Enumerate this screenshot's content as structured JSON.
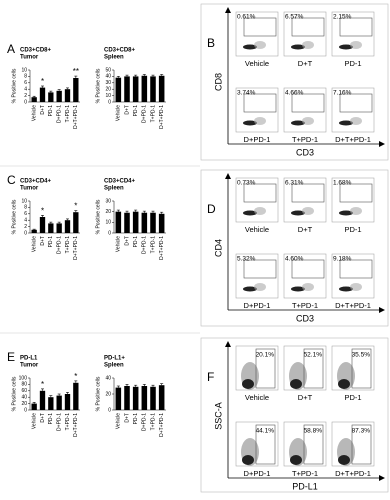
{
  "chart_data": [
    {
      "type": "bar",
      "title": "CD3+CD8+",
      "subtitle": "Tumor",
      "y_label": "% Positive cells",
      "categories": [
        "Vehicle",
        "D+T",
        "PD-1",
        "D+PD-1",
        "T+PD-1",
        "D+T+PD-1"
      ],
      "values": [
        1.5,
        4.5,
        3,
        3.5,
        4,
        7.5
      ],
      "errors": [
        0.3,
        0.5,
        0.4,
        0.4,
        0.4,
        0.6
      ],
      "color": "#000000",
      "ylim": [
        0,
        10
      ],
      "yticks": [
        0,
        2,
        4,
        6,
        8,
        10
      ],
      "annotations": [
        {
          "category": "D+T",
          "text": "*"
        },
        {
          "category": "D+T+PD-1",
          "text": "**"
        }
      ]
    },
    {
      "type": "bar",
      "title": "CD3+CD8+",
      "subtitle": "Spleen",
      "y_label": "% Positive cells",
      "categories": [
        "Vehicle",
        "D+T",
        "PD-1",
        "D+PD-1",
        "T+PD-1",
        "D+T+PD-1"
      ],
      "values": [
        38,
        40,
        40,
        41,
        40,
        41
      ],
      "errors": [
        2,
        2,
        2,
        2,
        2,
        2
      ],
      "color": "#000000",
      "ylim": [
        0,
        50
      ],
      "yticks": [
        0,
        10,
        20,
        30,
        40,
        50
      ]
    },
    {
      "type": "bar",
      "title": "CD3+CD4+",
      "subtitle": "Tumor",
      "y_label": "% Positive cells",
      "categories": [
        "Vehicle",
        "D+T",
        "PD-1",
        "D+PD-1",
        "T+PD-1",
        "D+T+PD-1"
      ],
      "values": [
        1,
        5,
        3,
        3,
        4,
        6.5
      ],
      "errors": [
        0.2,
        0.5,
        0.4,
        0.4,
        0.4,
        0.5
      ],
      "color": "#000000",
      "ylim": [
        0,
        10
      ],
      "yticks": [
        0,
        2,
        4,
        6,
        8,
        10
      ],
      "annotations": [
        {
          "category": "D+T",
          "text": "*"
        },
        {
          "category": "D+T+PD-1",
          "text": "*"
        }
      ]
    },
    {
      "type": "bar",
      "title": "CD3+CD4+",
      "subtitle": "Spleen",
      "y_label": "% Positive cells",
      "categories": [
        "Vehicle",
        "D+T",
        "PD-1",
        "D+PD-1",
        "T+PD-1",
        "D+T+PD-1"
      ],
      "values": [
        20,
        19,
        20,
        19,
        19,
        18
      ],
      "errors": [
        1.5,
        1.5,
        1.5,
        1.5,
        1.5,
        1.5
      ],
      "color": "#000000",
      "ylim": [
        0,
        30
      ],
      "yticks": [
        0,
        10,
        20,
        30
      ]
    },
    {
      "type": "bar",
      "title": "PD-L1",
      "subtitle": "Tumor",
      "y_label": "% Positive cells",
      "categories": [
        "Vehicle",
        "D+T",
        "PD-1",
        "D+PD-1",
        "T+PD-1",
        "D+T+PD-1"
      ],
      "values": [
        20,
        60,
        40,
        45,
        50,
        85
      ],
      "errors": [
        4,
        6,
        5,
        5,
        5,
        6
      ],
      "color": "#000000",
      "ylim": [
        0,
        100
      ],
      "yticks": [
        0,
        20,
        40,
        60,
        80,
        100
      ],
      "annotations": [
        {
          "category": "D+T",
          "text": "*"
        },
        {
          "category": "D+T+PD-1",
          "text": "*"
        }
      ]
    },
    {
      "type": "bar",
      "title": "PD-L1+",
      "subtitle": "Spleen",
      "y_label": "% Positive cells",
      "categories": [
        "Vehicle",
        "D+T",
        "PD-1",
        "D+PD-1",
        "T+PD-1",
        "D+T+PD-1"
      ],
      "values": [
        28,
        30,
        29,
        30,
        29,
        31
      ],
      "errors": [
        2,
        2,
        2,
        2,
        2,
        2
      ],
      "color": "#000000",
      "ylim": [
        0,
        40
      ],
      "yticks": [
        0,
        20,
        40
      ]
    }
  ],
  "bar_panel_letters": [
    "A",
    "C",
    "E"
  ],
  "flow_panels": [
    {
      "letter": "B",
      "x_label": "CD3",
      "y_label": "CD8",
      "gate": "horizontal",
      "plots": [
        {
          "label": "Vehicle",
          "percent": "0.61%"
        },
        {
          "label": "D+T",
          "percent": "6.57%"
        },
        {
          "label": "PD-1",
          "percent": "2.15%"
        },
        {
          "label": "D+PD-1",
          "percent": "3.74%"
        },
        {
          "label": "T+PD-1",
          "percent": "4.66%"
        },
        {
          "label": "D+T+PD-1",
          "percent": "7.16%"
        }
      ]
    },
    {
      "letter": "D",
      "x_label": "CD3",
      "y_label": "CD4",
      "gate": "horizontal",
      "plots": [
        {
          "label": "Vehicle",
          "percent": "0.73%"
        },
        {
          "label": "D+T",
          "percent": "6.31%"
        },
        {
          "label": "PD-1",
          "percent": "1.68%"
        },
        {
          "label": "D+PD-1",
          "percent": "5.32%"
        },
        {
          "label": "T+PD-1",
          "percent": "4.60%"
        },
        {
          "label": "D+T+PD-1",
          "percent": "9.18%"
        }
      ]
    },
    {
      "letter": "F",
      "x_label": "PD-L1",
      "y_label": "SSC-A",
      "gate": "vertical",
      "plots": [
        {
          "label": "Vehicle",
          "percent": "20.1%"
        },
        {
          "label": "D+T",
          "percent": "52.1%"
        },
        {
          "label": "PD-1",
          "percent": "35.5%"
        },
        {
          "label": "D+PD-1",
          "percent": "44.1%"
        },
        {
          "label": "T+PD-1",
          "percent": "58.8%"
        },
        {
          "label": "D+T+PD-1",
          "percent": "87.3%"
        }
      ]
    }
  ]
}
